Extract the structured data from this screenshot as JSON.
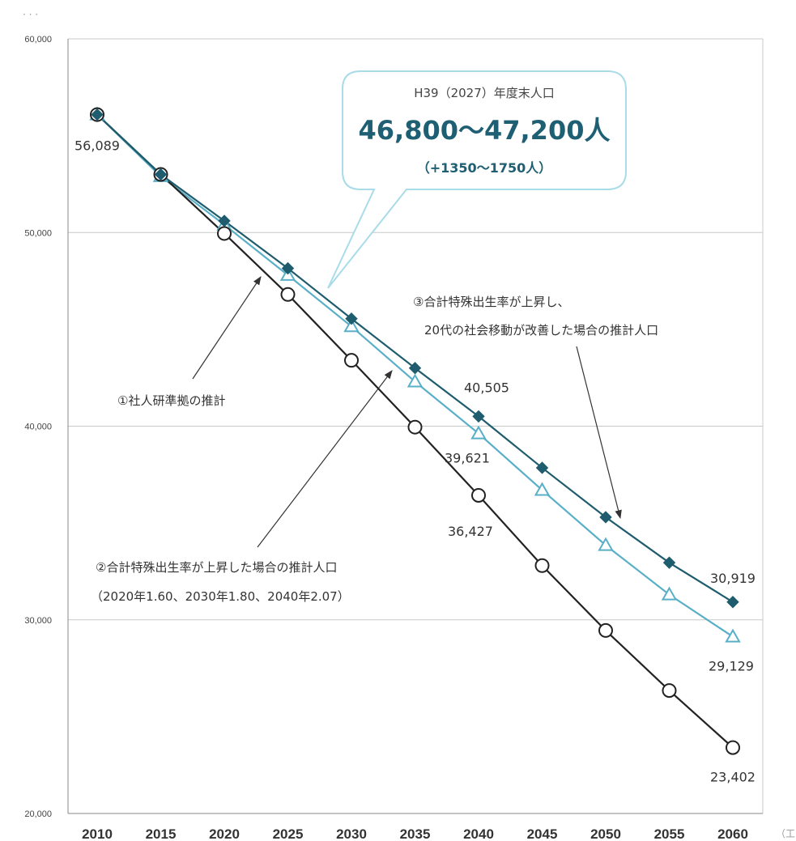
{
  "chart_data": {
    "type": "line",
    "title": "",
    "xlabel": "",
    "ylabel": "",
    "ylim": [
      20000,
      60000
    ],
    "yticks": [
      "20,000",
      "30,000",
      "40,000",
      "50,000",
      "60,000"
    ],
    "x": [
      "2010",
      "2015",
      "2020",
      "2025",
      "2030",
      "2035",
      "2040",
      "2045",
      "2050",
      "2055",
      "2060"
    ],
    "grid": true,
    "series": [
      {
        "id": "s1",
        "marker": "circle-open",
        "color": "#222222",
        "values": [
          56089,
          53000,
          49950,
          46800,
          43400,
          39950,
          36427,
          32800,
          29450,
          26350,
          23402
        ]
      },
      {
        "id": "s2",
        "marker": "triangle-open",
        "color": "#5aafc8",
        "values": [
          56089,
          52900,
          50400,
          47800,
          45150,
          42300,
          39621,
          36700,
          33850,
          31300,
          29129
        ]
      },
      {
        "id": "s3",
        "marker": "diamond-filled",
        "color": "#1e5c6e",
        "values": [
          56089,
          53000,
          50600,
          48150,
          45550,
          43000,
          40505,
          37850,
          35300,
          32950,
          30919
        ]
      }
    ],
    "data_labels": [
      {
        "series": "s1",
        "index": 0,
        "text": "56,089"
      },
      {
        "series": "s3",
        "index": 6,
        "text": "40,505"
      },
      {
        "series": "s2",
        "index": 6,
        "text": "39,621"
      },
      {
        "series": "s1",
        "index": 6,
        "text": "36,427"
      },
      {
        "series": "s3",
        "index": 10,
        "text": "30,919"
      },
      {
        "series": "s2",
        "index": 10,
        "text": "29,129"
      },
      {
        "series": "s1",
        "index": 10,
        "text": "23,402"
      }
    ],
    "annotations": {
      "a1": "①社人研準拠の推計",
      "a2_line1": "②合計特殊出生率が上昇した場合の推計人口",
      "a2_line2": "（2020年1.60、2030年1.80、2040年2.07）",
      "a3_line1": "③合計特殊出生率が上昇し、",
      "a3_line2": "20代の社会移動が改善した場合の推計人口"
    },
    "callout": {
      "line1": "H39（2027）年度末人口",
      "line2": "46,800～47,200人",
      "line3": "（+1350～1750人）"
    },
    "corner_marks": {
      "top_left": "· · ·",
      "bottom_right": "（工"
    }
  }
}
